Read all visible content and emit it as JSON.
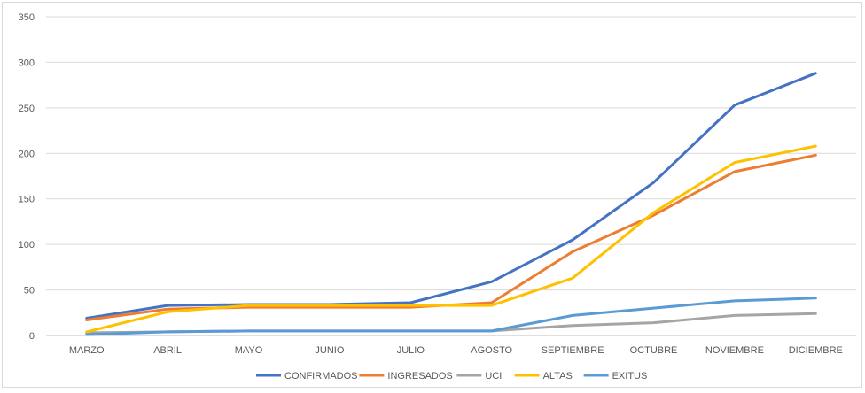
{
  "chart_data": {
    "type": "line",
    "categories": [
      "MARZO",
      "ABRIL",
      "MAYO",
      "JUNIO",
      "JULIO",
      "AGOSTO",
      "SEPTIEMBRE",
      "OCTUBRE",
      "NOVIEMBRE",
      "DICIEMBRE"
    ],
    "ylim": [
      0,
      350
    ],
    "yticks": [
      0,
      50,
      100,
      150,
      200,
      250,
      300,
      350
    ],
    "grid": true,
    "legend_position": "bottom",
    "series": [
      {
        "name": "CONFIRMADOS",
        "color": "#4472c4",
        "values": [
          19,
          33,
          34,
          34,
          36,
          59,
          105,
          168,
          253,
          288
        ]
      },
      {
        "name": "INGRESADOS",
        "color": "#ed7d31",
        "values": [
          17,
          29,
          31,
          31,
          31,
          36,
          92,
          132,
          180,
          198
        ]
      },
      {
        "name": "UCI",
        "color": "#a5a5a5",
        "values": [
          3,
          4,
          5,
          5,
          5,
          5,
          11,
          14,
          22,
          24
        ]
      },
      {
        "name": "ALTAS",
        "color": "#ffc000",
        "values": [
          4,
          26,
          33,
          33,
          33,
          33,
          63,
          135,
          190,
          208
        ]
      },
      {
        "name": "EXITUS",
        "color": "#5b9bd5",
        "values": [
          1,
          4,
          5,
          5,
          5,
          5,
          22,
          30,
          38,
          41
        ]
      }
    ]
  }
}
